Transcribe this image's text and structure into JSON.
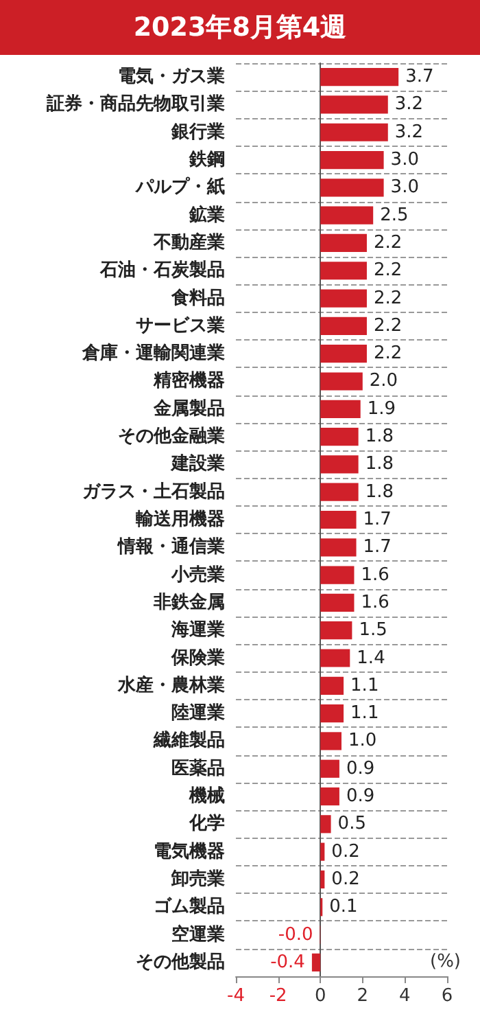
{
  "chart_data": {
    "type": "bar",
    "orientation": "horizontal",
    "title": "2023年8月第4週",
    "categories": [
      "電気・ガス業",
      "証券・商品先物取引業",
      "銀行業",
      "鉄鋼",
      "パルプ・紙",
      "鉱業",
      "不動産業",
      "石油・石炭製品",
      "食料品",
      "サービス業",
      "倉庫・運輸関連業",
      "精密機器",
      "金属製品",
      "その他金融業",
      "建設業",
      "ガラス・土石製品",
      "輸送用機器",
      "情報・通信業",
      "小売業",
      "非鉄金属",
      "海運業",
      "保険業",
      "水産・農林業",
      "陸運業",
      "繊維製品",
      "医薬品",
      "機械",
      "化学",
      "電気機器",
      "卸売業",
      "ゴム製品",
      "空運業",
      "その他製品"
    ],
    "values": [
      3.7,
      3.2,
      3.2,
      3.0,
      3.0,
      2.5,
      2.2,
      2.2,
      2.2,
      2.2,
      2.2,
      2.0,
      1.9,
      1.8,
      1.8,
      1.8,
      1.7,
      1.7,
      1.6,
      1.6,
      1.5,
      1.4,
      1.1,
      1.1,
      1.0,
      0.9,
      0.9,
      0.5,
      0.2,
      0.2,
      0.1,
      -0.02,
      -0.4
    ],
    "value_labels": [
      "3.7",
      "3.2",
      "3.2",
      "3.0",
      "3.0",
      "2.5",
      "2.2",
      "2.2",
      "2.2",
      "2.2",
      "2.2",
      "2.0",
      "1.9",
      "1.8",
      "1.8",
      "1.8",
      "1.7",
      "1.7",
      "1.6",
      "1.6",
      "1.5",
      "1.4",
      "1.1",
      "1.1",
      "1.0",
      "0.9",
      "0.9",
      "0.5",
      "0.2",
      "0.2",
      "0.1",
      "-0.0",
      "-0.4"
    ],
    "color": "#d0202a",
    "xlim": [
      -4,
      6
    ],
    "xticks": [
      -4,
      -2,
      0,
      2,
      4,
      6
    ],
    "grid": "y",
    "annotations": [
      "(%)"
    ]
  }
}
